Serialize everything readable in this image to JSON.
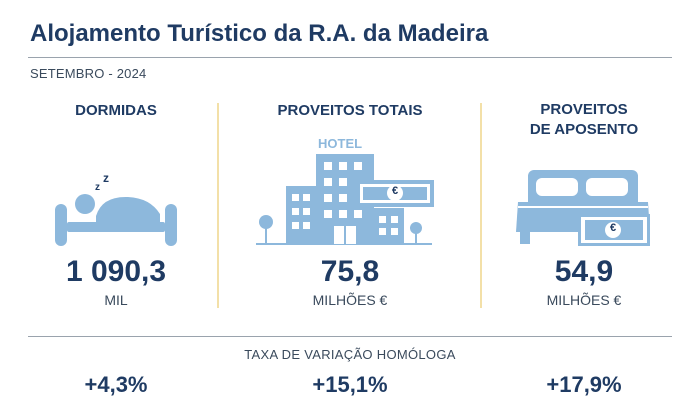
{
  "header": {
    "title": "Alojamento Turístico da R.A. da Madeira",
    "period": "SETEMBRO - 2024"
  },
  "indicators": [
    {
      "label": "DORMIDAS",
      "value": "1 090,3",
      "unit": "MIL",
      "icon": "sleeping-person-icon",
      "variation": "+4,3%"
    },
    {
      "label": "PROVEITOS TOTAIS",
      "value": "75,8",
      "unit": "MILHÕES €",
      "icon": "hotel-euro-icon",
      "hotel_sign": "HOTEL",
      "euro_symbol": "€",
      "variation": "+15,1%"
    },
    {
      "label": "PROVEITOS DE APOSENTO",
      "label_line1": "PROVEITOS",
      "label_line2": "DE APOSENTO",
      "value": "54,9",
      "unit": "MILHÕES €",
      "icon": "bed-euro-icon",
      "euro_symbol": "€",
      "variation": "+17,9%"
    }
  ],
  "variation_section": {
    "label": "TAXA DE VARIAÇÃO HOMÓLOGA"
  },
  "colors": {
    "primary": "#1f3b63",
    "icon": "#8db8dc",
    "divider": "#f3e0a8"
  }
}
